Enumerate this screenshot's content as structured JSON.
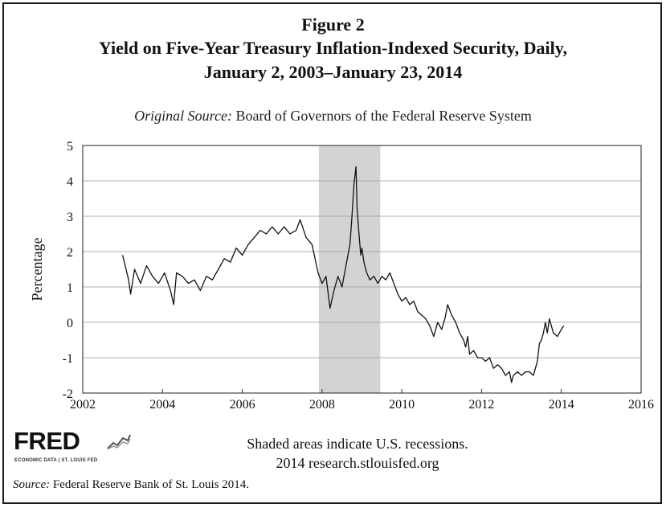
{
  "figure_label": "Figure 2",
  "title_line1": "Yield on Five-Year Treasury Inflation-Indexed Security, Daily,",
  "title_line2": "January 2, 2003–January 23, 2014",
  "original_source_label": "Original Source:",
  "original_source_text": "Board of Governors of the Federal Reserve System",
  "fred_logo_text": "FRED",
  "fred_logo_sub": "ECONOMIC DATA  |  ST. LOUIS FED",
  "recession_note": "Shaded areas indicate U.S. recessions.",
  "credit_note": "2014 research.stlouisfed.org",
  "footer_label": "Source:",
  "footer_text": "Federal Reserve Bank of St. Louis 2014.",
  "colors": {
    "line": "#111111",
    "recession": "#d3d3d3",
    "grid": "#999999"
  },
  "chart_data": {
    "type": "line",
    "ylabel": "Percentage",
    "xlabel": "",
    "xlim": [
      2002,
      2016
    ],
    "ylim": [
      -2,
      5
    ],
    "xticks": [
      "2002",
      "2004",
      "2006",
      "2008",
      "2010",
      "2012",
      "2014",
      "2016"
    ],
    "yticks": [
      "5",
      "4",
      "3",
      "2",
      "1",
      "0",
      "-1",
      "-2"
    ],
    "grid": true,
    "recession": [
      2007.92,
      2009.46
    ],
    "series": [
      {
        "x": [
          2003.0,
          2003.15,
          2003.2,
          2003.3,
          2003.45,
          2003.6,
          2003.75,
          2003.9,
          2004.05,
          2004.2,
          2004.28,
          2004.35,
          2004.5,
          2004.65,
          2004.8,
          2004.95,
          2005.1,
          2005.25,
          2005.4,
          2005.55,
          2005.7,
          2005.85,
          2006.0,
          2006.15,
          2006.3,
          2006.45,
          2006.6,
          2006.75,
          2006.9,
          2007.05,
          2007.2,
          2007.35,
          2007.45,
          2007.6,
          2007.75,
          2007.9,
          2008.0,
          2008.1,
          2008.2,
          2008.3,
          2008.4,
          2008.5,
          2008.6,
          2008.7,
          2008.75,
          2008.8,
          2008.85,
          2008.88,
          2008.92,
          2008.97,
          2009.0,
          2009.05,
          2009.12,
          2009.2,
          2009.3,
          2009.4,
          2009.5,
          2009.6,
          2009.7,
          2009.8,
          2009.9,
          2010.0,
          2010.1,
          2010.2,
          2010.3,
          2010.4,
          2010.5,
          2010.6,
          2010.7,
          2010.8,
          2010.9,
          2011.0,
          2011.08,
          2011.15,
          2011.25,
          2011.35,
          2011.45,
          2011.55,
          2011.6,
          2011.65,
          2011.7,
          2011.8,
          2011.9,
          2012.0,
          2012.1,
          2012.2,
          2012.3,
          2012.4,
          2012.5,
          2012.6,
          2012.7,
          2012.75,
          2012.8,
          2012.9,
          2013.0,
          2013.1,
          2013.2,
          2013.3,
          2013.35,
          2013.4,
          2013.45,
          2013.5,
          2013.55,
          2013.6,
          2013.65,
          2013.7,
          2013.8,
          2013.9,
          2014.0,
          2014.06
        ],
        "y": [
          1.9,
          1.2,
          0.8,
          1.5,
          1.1,
          1.6,
          1.3,
          1.1,
          1.4,
          0.9,
          0.5,
          1.4,
          1.3,
          1.1,
          1.2,
          0.9,
          1.3,
          1.2,
          1.5,
          1.8,
          1.7,
          2.1,
          1.9,
          2.2,
          2.4,
          2.6,
          2.5,
          2.7,
          2.5,
          2.7,
          2.5,
          2.6,
          2.9,
          2.4,
          2.2,
          1.4,
          1.1,
          1.3,
          0.4,
          0.9,
          1.3,
          1.0,
          1.6,
          2.2,
          3.0,
          3.9,
          4.4,
          3.2,
          2.6,
          1.9,
          2.1,
          1.7,
          1.4,
          1.2,
          1.3,
          1.1,
          1.3,
          1.2,
          1.4,
          1.1,
          0.8,
          0.6,
          0.7,
          0.5,
          0.6,
          0.3,
          0.2,
          0.1,
          -0.1,
          -0.4,
          0.0,
          -0.2,
          0.1,
          0.5,
          0.2,
          0.0,
          -0.3,
          -0.5,
          -0.7,
          -0.4,
          -0.9,
          -0.8,
          -1.0,
          -1.0,
          -1.1,
          -1.0,
          -1.3,
          -1.2,
          -1.3,
          -1.5,
          -1.4,
          -1.7,
          -1.5,
          -1.4,
          -1.5,
          -1.4,
          -1.4,
          -1.5,
          -1.3,
          -1.1,
          -0.6,
          -0.5,
          -0.3,
          0.0,
          -0.3,
          0.1,
          -0.3,
          -0.4,
          -0.2,
          -0.1
        ]
      }
    ]
  }
}
